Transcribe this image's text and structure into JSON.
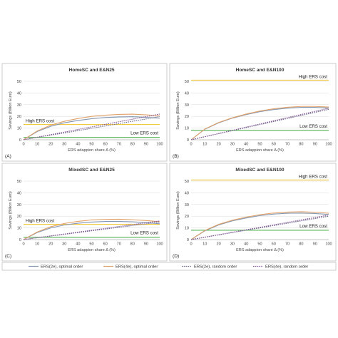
{
  "chart_data": [
    {
      "type": "line",
      "letter": "(A)",
      "title": "HomeSC and E&N25",
      "xlabel": "ERS adappion share Δ (%)",
      "ylabel": "Savings (Billion Euro)",
      "xlim": [
        0,
        100
      ],
      "ylim": [
        0,
        50
      ],
      "xticks": [
        0,
        10,
        20,
        30,
        40,
        50,
        60,
        70,
        80,
        90,
        100
      ],
      "yticks": [
        0,
        10,
        20,
        30,
        40,
        50
      ],
      "x": [
        0,
        10,
        20,
        30,
        40,
        50,
        60,
        70,
        80,
        90,
        100
      ],
      "series": [
        {
          "name": "ERS(2e), optimal order",
          "values": [
            0,
            7,
            11.5,
            14.5,
            16.5,
            18,
            19,
            19.5,
            19.7,
            19.2,
            18.5
          ]
        },
        {
          "name": "ERS(4e), optimal order",
          "values": [
            0,
            7.5,
            12.5,
            15.8,
            18.2,
            20,
            21,
            21.7,
            21.9,
            21.3,
            20.5
          ]
        },
        {
          "name": "ERS(2e), random order",
          "values": [
            0,
            2,
            4,
            5.8,
            7.8,
            9.8,
            11.8,
            13.8,
            15.8,
            17.8,
            19.8
          ]
        },
        {
          "name": "ERS(4e), random order",
          "values": [
            0,
            2.2,
            4.4,
            6.6,
            8.8,
            11,
            13.2,
            15.4,
            17.6,
            19.8,
            22
          ]
        }
      ],
      "annotations": [
        {
          "text": "High ERS cost",
          "y": 13
        },
        {
          "text": "Low ERS cost",
          "y": 2
        }
      ],
      "cost_lines": {
        "high": 13,
        "low": 2
      }
    },
    {
      "type": "line",
      "letter": "(B)",
      "title": "HomeSC and E&N100",
      "xlabel": "ERS adappion share Δ (%)",
      "ylabel": "Savings (Billion Euro)",
      "xlim": [
        0,
        100
      ],
      "ylim": [
        0,
        50
      ],
      "xticks": [
        0,
        10,
        20,
        30,
        40,
        50,
        60,
        70,
        80,
        90,
        100
      ],
      "yticks": [
        0,
        10,
        20,
        30,
        40,
        50
      ],
      "x": [
        0,
        10,
        20,
        30,
        40,
        50,
        60,
        70,
        80,
        90,
        100
      ],
      "series": [
        {
          "name": "ERS(2e), optimal order",
          "values": [
            0,
            9,
            14.5,
            18.5,
            21.5,
            24,
            25.8,
            27,
            27.7,
            27.7,
            27.2
          ]
        },
        {
          "name": "ERS(4e), optimal order",
          "values": [
            0,
            9.2,
            14.8,
            18.8,
            22,
            24.6,
            26.5,
            27.8,
            28.5,
            28.5,
            28
          ]
        },
        {
          "name": "ERS(2e), random order",
          "values": [
            0,
            2.6,
            5.2,
            7.8,
            10.4,
            13,
            15.6,
            18.2,
            20.8,
            23.4,
            26
          ]
        },
        {
          "name": "ERS(4e), random order",
          "values": [
            0,
            2.7,
            5.4,
            8.1,
            10.8,
            13.5,
            16.2,
            18.9,
            21.6,
            24.3,
            27
          ]
        }
      ],
      "annotations": [
        {
          "text": "High ERS cost",
          "y": 51
        },
        {
          "text": "Low ERS cost",
          "y": 8
        }
      ],
      "cost_lines": {
        "high": 51,
        "low": 8
      }
    },
    {
      "type": "line",
      "letter": "(C)",
      "title": "MixedSC and E&N25",
      "xlabel": "ERS adappion share Δ (%)",
      "ylabel": "Savings (Billion Euro)",
      "xlim": [
        0,
        100
      ],
      "ylim": [
        0,
        50
      ],
      "xticks": [
        0,
        10,
        20,
        30,
        40,
        50,
        60,
        70,
        80,
        90,
        100
      ],
      "yticks": [
        0,
        10,
        20,
        30,
        40,
        50
      ],
      "x": [
        0,
        10,
        20,
        30,
        40,
        50,
        60,
        70,
        80,
        90,
        100
      ],
      "series": [
        {
          "name": "ERS(2e), optimal order",
          "values": [
            0,
            6,
            10,
            12.5,
            14,
            15,
            15.5,
            15.5,
            15.2,
            14.5,
            13.5
          ]
        },
        {
          "name": "ERS(4e), optimal order",
          "values": [
            0,
            6.5,
            11,
            13.8,
            15.6,
            16.8,
            17.3,
            17.4,
            17,
            16.3,
            15.3
          ]
        },
        {
          "name": "ERS(2e), random order",
          "values": [
            0,
            1.5,
            3,
            4.5,
            6,
            7.5,
            9,
            10.5,
            12,
            13.5,
            15
          ]
        },
        {
          "name": "ERS(4e), random order",
          "values": [
            0,
            1.6,
            3.2,
            4.8,
            6.4,
            8,
            9.6,
            11.2,
            12.8,
            14.4,
            16
          ]
        }
      ],
      "annotations": [
        {
          "text": "High ERS cost",
          "y": 13
        },
        {
          "text": "Low ERS cost",
          "y": 2
        }
      ],
      "cost_lines": {
        "high": 13,
        "low": 2
      }
    },
    {
      "type": "line",
      "letter": "(D)",
      "title": "MixedSC and E&N100",
      "xlabel": "ERS adappion share Δ (%)",
      "ylabel": "Savings (Billion Euro)",
      "xlim": [
        0,
        100
      ],
      "ylim": [
        0,
        50
      ],
      "xticks": [
        0,
        10,
        20,
        30,
        40,
        50,
        60,
        70,
        80,
        90,
        100
      ],
      "yticks": [
        0,
        10,
        20,
        30,
        40,
        50
      ],
      "x": [
        0,
        10,
        20,
        30,
        40,
        50,
        60,
        70,
        80,
        90,
        100
      ],
      "series": [
        {
          "name": "ERS(2e), optimal order",
          "values": [
            0,
            7.5,
            12.5,
            16,
            18.5,
            20.5,
            21.8,
            22.5,
            22.7,
            22.3,
            21.5
          ]
        },
        {
          "name": "ERS(4e), optimal order",
          "values": [
            0,
            7.8,
            13,
            16.6,
            19.2,
            21.3,
            22.7,
            23.5,
            23.8,
            23.4,
            22.5
          ]
        },
        {
          "name": "ERS(2e), random order",
          "values": [
            0,
            2,
            4,
            6,
            8,
            10,
            12,
            14,
            16,
            18,
            20
          ]
        },
        {
          "name": "ERS(4e), random order",
          "values": [
            0,
            2.1,
            4.2,
            6.3,
            8.4,
            10.5,
            12.6,
            14.7,
            16.8,
            18.9,
            21
          ]
        }
      ],
      "annotations": [
        {
          "text": "High ERS cost",
          "y": 51
        },
        {
          "text": "Low ERS cost",
          "y": 8
        }
      ],
      "cost_lines": {
        "high": 51,
        "low": 8
      }
    }
  ],
  "legend": [
    {
      "label": "ERS(2e), optimal order",
      "color": "#8497b0",
      "dash": false
    },
    {
      "label": "ERS(4e), optimal order",
      "color": "#e0a16a",
      "dash": false
    },
    {
      "label": "ERS(2e), random order",
      "color": "#6f6f8f",
      "dash": true
    },
    {
      "label": "ERS(4e), random order",
      "color": "#8a5a9a",
      "dash": true
    }
  ],
  "colors": {
    "series": [
      "#8497b0",
      "#e0a16a",
      "#6f6f8f",
      "#8a5a9a"
    ],
    "high_cost": "#f0c020",
    "low_cost": "#3aa63a",
    "grid": "#d9d9d9",
    "frame": "#bfbfbf"
  }
}
